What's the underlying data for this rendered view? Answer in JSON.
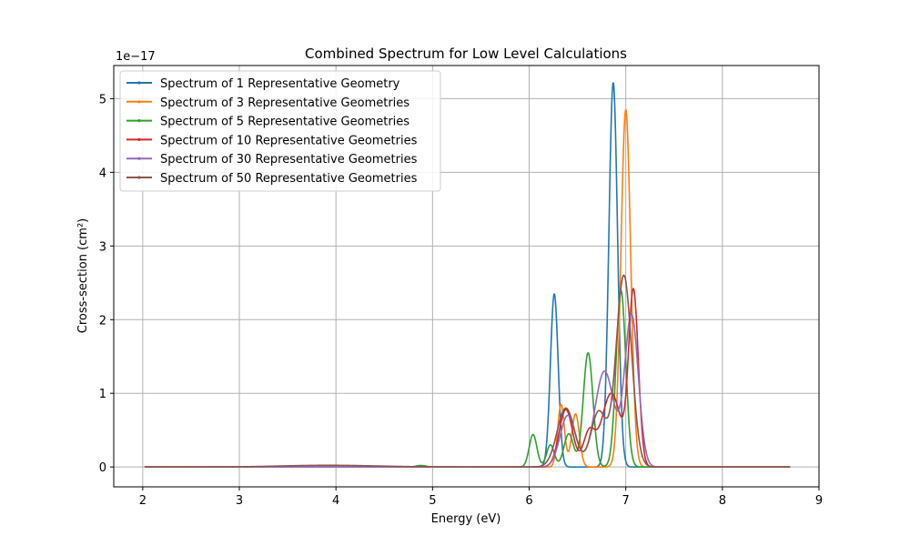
{
  "chart_data": {
    "type": "line",
    "title": "Combined Spectrum for Low Level Calculations",
    "xlabel": "Energy (eV)",
    "ylabel": "Cross-section (cm²)",
    "offset_text": "1e−17",
    "xlim": [
      1.7,
      9.0
    ],
    "ylim": [
      -0.27,
      5.45
    ],
    "xticks": [
      2,
      3,
      4,
      5,
      6,
      7,
      8,
      9
    ],
    "yticks": [
      0,
      1,
      2,
      3,
      4,
      5
    ],
    "grid": true,
    "legend_position": "upper-left",
    "series": [
      {
        "name": "Spectrum of 1 Representative Geometry",
        "color": "#1f77b4",
        "peaks": [
          [
            6.26,
            2.35,
            0.04
          ],
          [
            6.87,
            5.22,
            0.045
          ]
        ]
      },
      {
        "name": "Spectrum of 3 Representative Geometries",
        "color": "#ff7f0e",
        "peaks": [
          [
            6.33,
            0.85,
            0.035
          ],
          [
            6.48,
            0.72,
            0.04
          ],
          [
            7.0,
            4.85,
            0.05
          ]
        ]
      },
      {
        "name": "Spectrum of 5 Representative Geometries",
        "color": "#2ca02c",
        "peaks": [
          [
            4.88,
            0.02,
            0.05
          ],
          [
            6.04,
            0.44,
            0.04
          ],
          [
            6.22,
            0.3,
            0.04
          ],
          [
            6.41,
            0.45,
            0.05
          ],
          [
            6.61,
            1.55,
            0.05
          ],
          [
            6.95,
            2.4,
            0.05
          ]
        ]
      },
      {
        "name": "Spectrum of 10 Representative Geometries",
        "color": "#d62728",
        "peaks": [
          [
            6.38,
            0.78,
            0.07
          ],
          [
            6.62,
            0.45,
            0.06
          ],
          [
            6.85,
            1.0,
            0.1
          ],
          [
            7.08,
            2.35,
            0.05
          ]
        ]
      },
      {
        "name": "Spectrum of 30 Representative Geometries",
        "color": "#9467bd",
        "peaks": [
          [
            6.4,
            0.7,
            0.08
          ],
          [
            6.78,
            1.3,
            0.1
          ],
          [
            7.06,
            2.05,
            0.07
          ]
        ]
      },
      {
        "name": "Spectrum of 50 Representative Geometries",
        "color": "#8c564b",
        "peaks": [
          [
            3.72,
            0.015,
            0.4
          ],
          [
            4.2,
            0.012,
            0.4
          ],
          [
            6.38,
            0.8,
            0.09
          ],
          [
            6.72,
            0.75,
            0.08
          ],
          [
            6.98,
            2.6,
            0.08
          ]
        ]
      }
    ]
  }
}
